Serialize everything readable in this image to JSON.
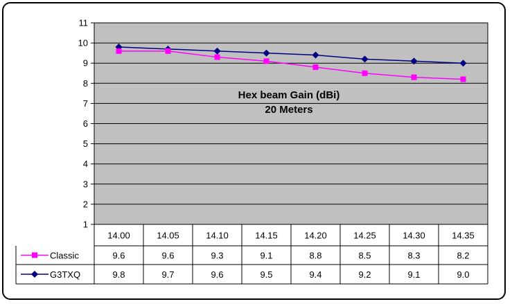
{
  "chart_data": {
    "type": "line",
    "title": "Hex beam Gain (dBi)",
    "subtitle": "20 Meters",
    "categories": [
      "14.00",
      "14.05",
      "14.10",
      "14.15",
      "14.20",
      "14.25",
      "14.30",
      "14.35"
    ],
    "y_ticks": [
      "1",
      "2",
      "3",
      "4",
      "5",
      "6",
      "7",
      "8",
      "9",
      "10",
      "11"
    ],
    "ylim": [
      1,
      11
    ],
    "grid": true,
    "legend": "data-table",
    "series": [
      {
        "name": "Classic",
        "color": "#ff00ff",
        "marker": "square",
        "values": [
          9.6,
          9.6,
          9.3,
          9.1,
          8.8,
          8.5,
          8.3,
          8.2
        ],
        "labels": [
          "9.6",
          "9.6",
          "9.3",
          "9.1",
          "8.8",
          "8.5",
          "8.3",
          "8.2"
        ]
      },
      {
        "name": "G3TXQ",
        "color": "#000080",
        "marker": "diamond",
        "values": [
          9.8,
          9.7,
          9.6,
          9.5,
          9.4,
          9.2,
          9.1,
          9.0
        ],
        "labels": [
          "9.8",
          "9.7",
          "9.6",
          "9.5",
          "9.4",
          "9.2",
          "9.1",
          "9.0"
        ]
      }
    ],
    "plot_background": "#c0c0c0"
  }
}
